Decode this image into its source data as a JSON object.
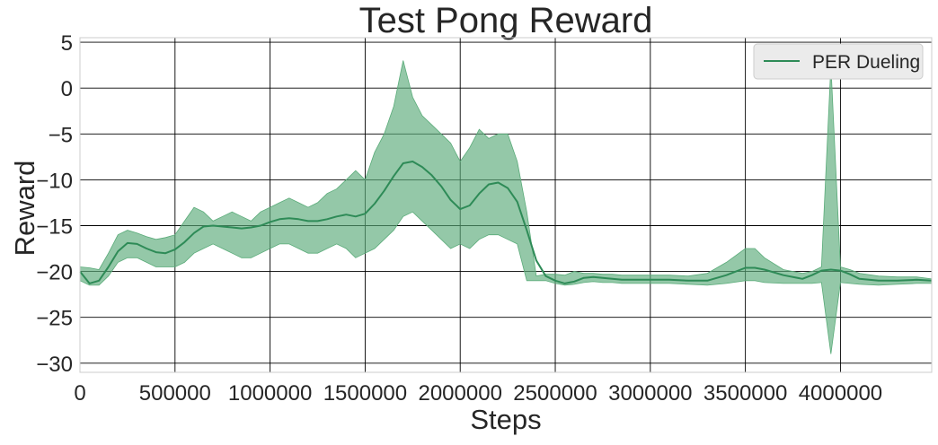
{
  "chart_data": {
    "type": "line",
    "title": "Test Pong Reward",
    "xlabel": "Steps",
    "ylabel": "Reward",
    "xlim": [
      0,
      4480000
    ],
    "ylim": [
      -31,
      5.5
    ],
    "x_ticks": [
      0,
      500000,
      1000000,
      1500000,
      2000000,
      2500000,
      3000000,
      3500000,
      4000000
    ],
    "x_tick_labels": [
      "0",
      "500000",
      "1000000",
      "1500000",
      "2000000",
      "2500000",
      "3000000",
      "3500000",
      "4000000"
    ],
    "y_ticks": [
      5,
      0,
      -5,
      -10,
      -15,
      -20,
      -25,
      -30
    ],
    "y_tick_labels": [
      "5",
      "0",
      "−5",
      "−10",
      "−15",
      "−20",
      "−25",
      "−30"
    ],
    "grid": true,
    "legend_position": "top-right",
    "colors": {
      "line": "#2e8b57",
      "band": "#5aab79",
      "grid": "#000000",
      "legend_bg": "#ebebeb"
    },
    "series": [
      {
        "name": "PER Dueling",
        "x": [
          0,
          50000,
          100000,
          150000,
          200000,
          250000,
          300000,
          350000,
          400000,
          450000,
          500000,
          550000,
          600000,
          650000,
          700000,
          750000,
          800000,
          850000,
          900000,
          950000,
          1000000,
          1050000,
          1100000,
          1150000,
          1200000,
          1250000,
          1300000,
          1350000,
          1400000,
          1450000,
          1500000,
          1550000,
          1600000,
          1650000,
          1700000,
          1750000,
          1800000,
          1850000,
          1900000,
          1950000,
          2000000,
          2050000,
          2100000,
          2150000,
          2200000,
          2250000,
          2300000,
          2350000,
          2400000,
          2450000,
          2500000,
          2550000,
          2600000,
          2650000,
          2700000,
          2750000,
          2800000,
          2850000,
          2900000,
          2950000,
          3000000,
          3100000,
          3200000,
          3300000,
          3400000,
          3500000,
          3550000,
          3600000,
          3700000,
          3800000,
          3850000,
          3900000,
          3950000,
          4000000,
          4050000,
          4100000,
          4200000,
          4300000,
          4400000,
          4480000
        ],
        "smoothed": [
          -20.0,
          -21.3,
          -21.0,
          -19.5,
          -17.8,
          -16.9,
          -17.0,
          -17.5,
          -17.9,
          -18.0,
          -17.6,
          -16.8,
          -15.8,
          -15.1,
          -15.0,
          -15.1,
          -15.2,
          -15.3,
          -15.2,
          -15.0,
          -14.6,
          -14.3,
          -14.2,
          -14.3,
          -14.5,
          -14.5,
          -14.3,
          -14.0,
          -13.8,
          -14.0,
          -13.7,
          -12.6,
          -11.2,
          -9.6,
          -8.2,
          -8.0,
          -8.6,
          -9.5,
          -10.7,
          -12.2,
          -13.2,
          -12.8,
          -11.5,
          -10.5,
          -10.3,
          -10.9,
          -12.4,
          -15.5,
          -18.8,
          -20.5,
          -21.0,
          -21.3,
          -21.1,
          -20.7,
          -20.6,
          -20.7,
          -20.8,
          -20.9,
          -20.9,
          -20.9,
          -20.9,
          -20.9,
          -21.0,
          -21.0,
          -20.4,
          -19.6,
          -19.6,
          -19.8,
          -20.4,
          -20.8,
          -20.4,
          -19.9,
          -19.8,
          -19.9,
          -20.3,
          -20.8,
          -21.0,
          -21.0,
          -20.9,
          -21.0
        ],
        "band_upper": [
          -19.5,
          -19.6,
          -19.8,
          -18.0,
          -16.0,
          -15.5,
          -15.8,
          -16.2,
          -16.5,
          -16.3,
          -16.0,
          -14.5,
          -13.0,
          -13.5,
          -14.5,
          -14.0,
          -13.5,
          -14.0,
          -14.5,
          -13.5,
          -13.0,
          -12.5,
          -12.0,
          -12.5,
          -13.0,
          -12.5,
          -11.5,
          -11.0,
          -10.0,
          -9.0,
          -10.0,
          -7.0,
          -5.0,
          -2.0,
          3.0,
          -1.0,
          -3.0,
          -4.0,
          -5.0,
          -6.0,
          -8.0,
          -6.5,
          -4.5,
          -5.5,
          -5.0,
          -5.0,
          -8.0,
          -13.5,
          -20.5,
          -20.3,
          -20.3,
          -20.4,
          -20.0,
          -20.2,
          -20.2,
          -20.3,
          -20.3,
          -20.4,
          -20.4,
          -20.4,
          -20.4,
          -20.4,
          -20.5,
          -20.2,
          -19.0,
          -17.5,
          -17.5,
          -18.5,
          -19.8,
          -20.2,
          -20.0,
          -19.5,
          2.5,
          -19.5,
          -19.8,
          -20.2,
          -20.5,
          -20.6,
          -20.6,
          -20.8
        ],
        "band_lower": [
          -21.0,
          -21.5,
          -21.5,
          -20.5,
          -19.0,
          -18.5,
          -18.5,
          -19.0,
          -19.5,
          -19.5,
          -19.5,
          -19.0,
          -18.0,
          -17.5,
          -17.0,
          -17.5,
          -18.0,
          -18.5,
          -18.5,
          -18.0,
          -17.5,
          -17.0,
          -17.0,
          -17.5,
          -18.0,
          -18.0,
          -17.5,
          -17.0,
          -17.5,
          -18.5,
          -18.0,
          -17.5,
          -16.5,
          -15.5,
          -14.0,
          -13.5,
          -14.5,
          -15.5,
          -16.5,
          -17.5,
          -17.0,
          -17.5,
          -16.5,
          -16.0,
          -16.0,
          -16.5,
          -17.0,
          -21.0,
          -21.0,
          -21.0,
          -21.3,
          -21.5,
          -21.4,
          -21.2,
          -21.1,
          -21.2,
          -21.2,
          -21.3,
          -21.3,
          -21.3,
          -21.3,
          -21.3,
          -21.4,
          -21.5,
          -21.3,
          -21.0,
          -21.0,
          -21.2,
          -21.3,
          -21.3,
          -21.3,
          -21.2,
          -29.0,
          -21.2,
          -21.3,
          -21.4,
          -21.5,
          -21.4,
          -21.3,
          -21.3
        ]
      }
    ]
  }
}
